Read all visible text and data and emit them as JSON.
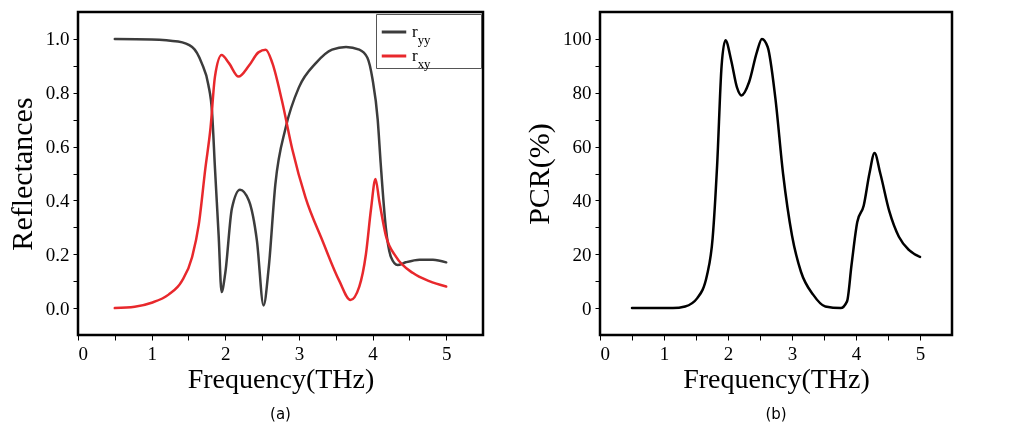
{
  "chart_data": [
    {
      "type": "line",
      "xlabel": "Frequency(THz)",
      "ylabel": "Reflectances",
      "annotations": [
        "(a)"
      ],
      "legend": "top right",
      "grid": false,
      "xlim": [
        0,
        5.5
      ],
      "xticks": [
        0,
        {
          "value": 0.5,
          "label": null
        },
        1,
        {
          "value": 1.5,
          "label": null
        },
        2,
        {
          "value": 2.5,
          "label": null
        },
        3,
        {
          "value": 3.5,
          "label": null
        },
        4,
        {
          "value": 4.5,
          "label": null
        },
        5
      ],
      "ylim": [
        -0.1,
        1.1
      ],
      "yticks": [
        {
          "value": 0.0,
          "label": "0.0"
        },
        {
          "value": 0.1,
          "label": null
        },
        0.2,
        {
          "value": 0.3,
          "label": null
        },
        0.4,
        {
          "value": 0.5,
          "label": null
        },
        0.6,
        {
          "value": 0.7,
          "label": null
        },
        0.8,
        {
          "value": 0.9,
          "label": null
        },
        {
          "value": 1.0,
          "label": "1.0"
        }
      ],
      "series": [
        {
          "name": "r$_{yy}$",
          "color": "#3c3c3c",
          "x": [
            0.5,
            1.0,
            1.36,
            1.55,
            1.68,
            1.77,
            1.82,
            1.86,
            1.91,
            1.95,
            2.0,
            2.09,
            2.2,
            2.32,
            2.43,
            2.52,
            2.59,
            2.68,
            2.82,
            3.0,
            3.23,
            3.45,
            3.64,
            3.82,
            3.93,
            4.0,
            4.07,
            4.11,
            4.18,
            4.25,
            4.34,
            4.45,
            4.64,
            4.82,
            5.0
          ],
          "values": [
            1.0,
            0.998,
            0.99,
            0.97,
            0.91,
            0.83,
            0.73,
            0.52,
            0.27,
            0.06,
            0.13,
            0.37,
            0.44,
            0.4,
            0.25,
            0.01,
            0.15,
            0.46,
            0.67,
            0.82,
            0.91,
            0.96,
            0.97,
            0.96,
            0.93,
            0.85,
            0.7,
            0.54,
            0.3,
            0.19,
            0.16,
            0.17,
            0.18,
            0.18,
            0.17
          ]
        },
        {
          "name": "r$_{xy}$",
          "color": "#e8282c",
          "x": [
            0.5,
            0.77,
            1.0,
            1.23,
            1.41,
            1.55,
            1.64,
            1.73,
            1.8,
            1.86,
            1.95,
            2.05,
            2.18,
            2.32,
            2.45,
            2.55,
            2.64,
            2.77,
            2.91,
            3.09,
            3.32,
            3.55,
            3.7,
            3.82,
            3.91,
            3.98,
            4.04,
            4.09,
            4.18,
            4.32,
            4.55,
            4.77,
            5.0
          ],
          "values": [
            0,
            0.005,
            0.02,
            0.05,
            0.1,
            0.19,
            0.31,
            0.52,
            0.67,
            0.86,
            0.94,
            0.91,
            0.86,
            0.9,
            0.95,
            0.96,
            0.91,
            0.77,
            0.59,
            0.41,
            0.25,
            0.1,
            0.03,
            0.08,
            0.2,
            0.37,
            0.48,
            0.4,
            0.27,
            0.19,
            0.13,
            0.1,
            0.08
          ]
        }
      ]
    },
    {
      "type": "line",
      "xlabel": "Frequency(THz)",
      "ylabel": "PCR(%)",
      "annotations": [
        "(b)"
      ],
      "grid": false,
      "xlim": [
        0,
        5.5
      ],
      "xticks": [
        0,
        {
          "value": 0.5,
          "label": null
        },
        1,
        {
          "value": 1.5,
          "label": null
        },
        2,
        {
          "value": 2.5,
          "label": null
        },
        3,
        {
          "value": 3.5,
          "label": null
        },
        4,
        {
          "value": 4.5,
          "label": null
        },
        5
      ],
      "ylim": [
        -10,
        110
      ],
      "yticks": [
        0,
        {
          "value": 10,
          "label": null
        },
        20,
        {
          "value": 30,
          "label": null
        },
        40,
        {
          "value": 50,
          "label": null
        },
        60,
        {
          "value": 70,
          "label": null
        },
        80,
        {
          "value": 90,
          "label": null
        },
        100
      ],
      "series": [
        {
          "color": "#000000",
          "x": [
            0.5,
            1.14,
            1.33,
            1.52,
            1.67,
            1.76,
            1.83,
            1.9,
            1.96,
            2.05,
            2.14,
            2.21,
            2.33,
            2.45,
            2.53,
            2.62,
            2.74,
            2.86,
            3.0,
            3.14,
            3.33,
            3.52,
            3.76,
            3.86,
            3.93,
            4.02,
            4.12,
            4.21,
            4.29,
            4.38,
            4.52,
            4.67,
            4.83,
            5.0
          ],
          "values": [
            0,
            0,
            0.6,
            3.7,
            12,
            26,
            53,
            90,
            99.5,
            92,
            82,
            79,
            84,
            95,
            100,
            97,
            78,
            50,
            27,
            13.5,
            5,
            0.6,
            0,
            2.5,
            16,
            32,
            38,
            50,
            57.6,
            50,
            36,
            26.5,
            21.5,
            19
          ]
        }
      ]
    }
  ]
}
